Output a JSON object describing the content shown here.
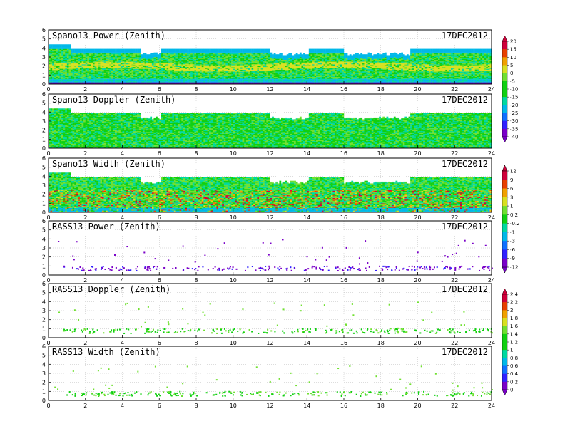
{
  "date": "17DEC2012",
  "x_ticks": [
    0,
    2,
    4,
    6,
    8,
    10,
    12,
    14,
    16,
    18,
    20,
    22,
    24
  ],
  "y_ticks": [
    0,
    1,
    2,
    3,
    4,
    5,
    6
  ],
  "colors": {
    "spectrum": [
      "#7a00c8",
      "#3020ff",
      "#1070ff",
      "#00b8e8",
      "#00d8a0",
      "#10d010",
      "#70e030",
      "#d8e020",
      "#f0a000",
      "#e84000",
      "#d0003a"
    ]
  },
  "chart_data": [
    {
      "type": "heatmap",
      "title": "Spano13 Power (Zenith)",
      "xlim": [
        0,
        24
      ],
      "ylim": [
        0,
        6
      ],
      "colorbar": {
        "labels": [
          "20",
          "15",
          "10",
          "5",
          "0",
          "-5",
          "-10",
          "-15",
          "-20",
          "-25",
          "-30",
          "-35",
          "-40"
        ]
      }
    },
    {
      "type": "heatmap",
      "title": "Spano13 Doppler (Zenith)",
      "xlim": [
        0,
        24
      ],
      "ylim": [
        0,
        6
      ]
    },
    {
      "type": "heatmap",
      "title": "Spano13 Width (Zenith)",
      "xlim": [
        0,
        24
      ],
      "ylim": [
        0,
        6
      ],
      "colorbar": {
        "labels": [
          "12",
          "9",
          "6",
          "3",
          "1",
          "0.2",
          "-0.2",
          "-1",
          "-3",
          "-6",
          "-9",
          "-12"
        ]
      }
    },
    {
      "type": "scatter",
      "title": "RASS13 Power (Zenith)",
      "xlim": [
        0,
        24
      ],
      "ylim": [
        0,
        6
      ]
    },
    {
      "type": "scatter",
      "title": "RASS13 Doppler (Zenith)",
      "xlim": [
        0,
        24
      ],
      "ylim": [
        0,
        6
      ],
      "colorbar": {
        "labels": [
          "2.4",
          "2.2",
          "2",
          "1.8",
          "1.6",
          "1.4",
          "1.2",
          "1",
          "0.8",
          "0.6",
          "0.4",
          "0.2",
          "0"
        ]
      }
    },
    {
      "type": "scatter",
      "title": "RASS13 Width (Zenith)",
      "xlim": [
        0,
        24
      ],
      "ylim": [
        0,
        6
      ]
    }
  ]
}
